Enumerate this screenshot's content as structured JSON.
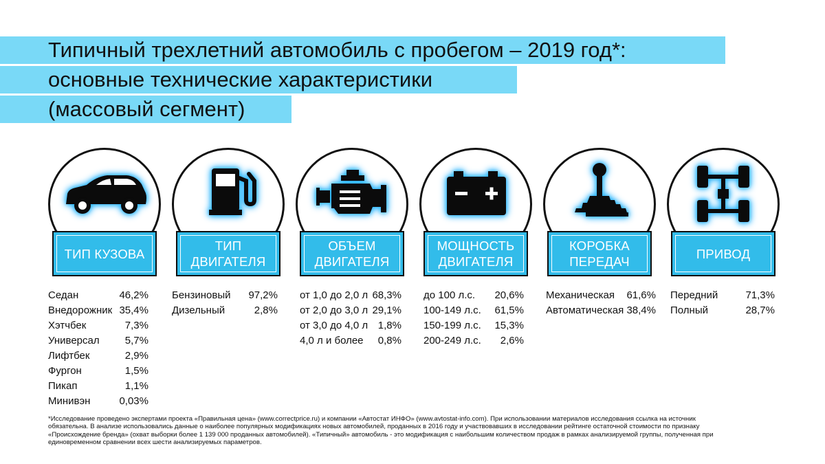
{
  "title": {
    "line1": "Типичный трехлетний автомобиль с пробегом – 2019 год*:",
    "line2": "основные технические характеристики",
    "line3": "(массовый сегмент)"
  },
  "categories": [
    {
      "label": "ТИП КУЗОВА",
      "icon": "car-icon",
      "rows": [
        {
          "name": "Седан",
          "value": "46,2%"
        },
        {
          "name": "Внедорожник",
          "value": "35,4%"
        },
        {
          "name": "Хэтчбек",
          "value": "7,3%"
        },
        {
          "name": "Универсал",
          "value": "5,7%"
        },
        {
          "name": "Лифтбек",
          "value": "2,9%"
        },
        {
          "name": "Фургон",
          "value": "1,5%"
        },
        {
          "name": "Пикап",
          "value": "1,1%"
        },
        {
          "name": "Минивэн",
          "value": "0,03%"
        }
      ]
    },
    {
      "label": "ТИП\nДВИГАТЕЛЯ",
      "icon": "fuel-pump-icon",
      "rows": [
        {
          "name": "Бензиновый",
          "value": "97,2%"
        },
        {
          "name": "Дизельный",
          "value": "2,8%"
        }
      ]
    },
    {
      "label": "ОБЪЕМ\nДВИГАТЕЛЯ",
      "icon": "engine-icon",
      "rows": [
        {
          "name": "от 1,0 до 2,0 л",
          "value": "68,3%"
        },
        {
          "name": "от 2,0 до 3,0 л",
          "value": "29,1%"
        },
        {
          "name": "от 3,0 до 4,0 л",
          "value": "1,8%"
        },
        {
          "name": "4,0 л и более",
          "value": "0,8%"
        }
      ]
    },
    {
      "label": "МОЩНОСТЬ\nДВИГАТЕЛЯ",
      "icon": "battery-icon",
      "rows": [
        {
          "name": "до 100 л.с.",
          "value": "20,6%"
        },
        {
          "name": "100-149 л.с.",
          "value": "61,5%"
        },
        {
          "name": "150-199 л.с.",
          "value": "15,3%"
        },
        {
          "name": "200-249 л.с.",
          "value": "2,6%"
        }
      ]
    },
    {
      "label": "КОРОБКА\nПЕРЕДАЧ",
      "icon": "gear-shift-icon",
      "rows": [
        {
          "name": "Механическая",
          "value": "61,6%"
        },
        {
          "name": "Автоматическая",
          "value": "38,4%"
        }
      ]
    },
    {
      "label": "ПРИВОД",
      "icon": "drivetrain-icon",
      "rows": [
        {
          "name": "Передний",
          "value": "71,3%"
        },
        {
          "name": "Полный",
          "value": "28,7%"
        }
      ]
    }
  ],
  "footnote": {
    "line1": "*Исследование проведено экспертами проекта «Правильная цена» (www.correctprice.ru) и компании «Автостат ИНФО» (www.avtostat-info.com). При использовании материалов исследования ссылка на источник",
    "line2": "обязательна. В анализе использовались данные о наиболее популярных модификациях новых автомобилей, проданных в 2016 году и участвовавших в исследовании рейтинге остаточной стоимости по признаку",
    "line3": "«Происхождение бренда» (охват  выборки более 1 139 000 проданных автомобилей). «Типичный» автомобиль - это модификация с наибольшим количеством продаж в рамках анализируемой группы, полученная при",
    "line4": "единовременном сравнении всех шести анализируемых параметров."
  },
  "colors": {
    "title_band": "#79d9f7",
    "label_box": "#32bcea",
    "icon_glow": "#2fb7ff"
  }
}
